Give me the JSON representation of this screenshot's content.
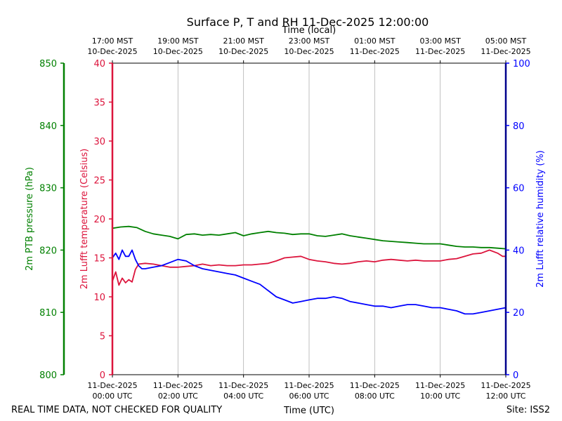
{
  "chart_data": {
    "type": "line",
    "title": "Surface P, T and RH 11-Dec-2025 12:00:00",
    "top_axis_title": "Time (local)",
    "xlabel": "Time (UTC)",
    "footer_left": "REAL TIME DATA, NOT CHECKED FOR QUALITY",
    "footer_right": "Site: ISS2",
    "xlim_hours_utc": [
      0,
      12
    ],
    "x_grid": true,
    "bottom_ticks": [
      {
        "h": 0,
        "l1": "11-Dec-2025",
        "l2": "00:00 UTC"
      },
      {
        "h": 2,
        "l1": "11-Dec-2025",
        "l2": "02:00 UTC"
      },
      {
        "h": 4,
        "l1": "11-Dec-2025",
        "l2": "04:00 UTC"
      },
      {
        "h": 6,
        "l1": "11-Dec-2025",
        "l2": "06:00 UTC"
      },
      {
        "h": 8,
        "l1": "11-Dec-2025",
        "l2": "08:00 UTC"
      },
      {
        "h": 10,
        "l1": "11-Dec-2025",
        "l2": "10:00 UTC"
      },
      {
        "h": 12,
        "l1": "11-Dec-2025",
        "l2": "12:00 UTC"
      }
    ],
    "top_ticks": [
      {
        "h": 0,
        "l1": "17:00 MST",
        "l2": "10-Dec-2025"
      },
      {
        "h": 2,
        "l1": "19:00 MST",
        "l2": "10-Dec-2025"
      },
      {
        "h": 4,
        "l1": "21:00 MST",
        "l2": "10-Dec-2025"
      },
      {
        "h": 6,
        "l1": "23:00 MST",
        "l2": "10-Dec-2025"
      },
      {
        "h": 8,
        "l1": "01:00 MST",
        "l2": "11-Dec-2025"
      },
      {
        "h": 10,
        "l1": "03:00 MST",
        "l2": "11-Dec-2025"
      },
      {
        "h": 12,
        "l1": "05:00 MST",
        "l2": "11-Dec-2025"
      }
    ],
    "axes": {
      "pressure": {
        "label": "2m PTB pressure (hPa)",
        "color": "#008000",
        "ylim": [
          800,
          850
        ],
        "ticks": [
          800,
          810,
          820,
          830,
          840,
          850
        ]
      },
      "temperature": {
        "label": "2m Lufft temperature (Celsius)",
        "color": "#dc143c",
        "ylim": [
          0,
          40
        ],
        "ticks": [
          0,
          5,
          10,
          15,
          20,
          25,
          30,
          35,
          40
        ]
      },
      "humidity": {
        "label": "2m Lufft relative humidity (%)",
        "color": "#0000ff",
        "ylim": [
          0,
          100
        ],
        "ticks": [
          0,
          20,
          40,
          60,
          80,
          100
        ]
      }
    },
    "series": [
      {
        "name": "2m PTB pressure",
        "axis": "pressure",
        "color": "#008000",
        "x": [
          0,
          0.25,
          0.5,
          0.75,
          1.0,
          1.25,
          1.5,
          1.75,
          2.0,
          2.25,
          2.5,
          2.75,
          3.0,
          3.25,
          3.5,
          3.75,
          4.0,
          4.25,
          4.5,
          4.75,
          5.0,
          5.25,
          5.5,
          5.75,
          6.0,
          6.25,
          6.5,
          6.75,
          7.0,
          7.25,
          7.5,
          7.75,
          8.0,
          8.25,
          8.5,
          8.75,
          9.0,
          9.25,
          9.5,
          9.75,
          10.0,
          10.25,
          10.5,
          10.75,
          11.0,
          11.25,
          11.5,
          11.75,
          12.0
        ],
        "values": [
          823.5,
          823.7,
          823.8,
          823.6,
          823.0,
          822.6,
          822.4,
          822.2,
          821.8,
          822.5,
          822.6,
          822.4,
          822.5,
          822.4,
          822.6,
          822.8,
          822.3,
          822.6,
          822.8,
          823.0,
          822.8,
          822.7,
          822.5,
          822.6,
          822.6,
          822.3,
          822.2,
          822.4,
          822.6,
          822.3,
          822.1,
          821.9,
          821.7,
          821.5,
          821.4,
          821.3,
          821.2,
          821.1,
          821.0,
          821.0,
          821.0,
          820.8,
          820.6,
          820.5,
          820.5,
          820.4,
          820.4,
          820.3,
          820.2
        ]
      },
      {
        "name": "2m Lufft temperature",
        "axis": "temperature",
        "color": "#dc143c",
        "x": [
          0,
          0.1,
          0.2,
          0.3,
          0.4,
          0.5,
          0.6,
          0.7,
          0.8,
          1.0,
          1.25,
          1.5,
          1.75,
          2.0,
          2.25,
          2.5,
          2.75,
          3.0,
          3.25,
          3.5,
          3.75,
          4.0,
          4.25,
          4.5,
          4.75,
          5.0,
          5.25,
          5.5,
          5.75,
          6.0,
          6.25,
          6.5,
          6.75,
          7.0,
          7.25,
          7.5,
          7.75,
          8.0,
          8.25,
          8.5,
          8.75,
          9.0,
          9.25,
          9.5,
          9.75,
          10.0,
          10.25,
          10.5,
          10.75,
          11.0,
          11.25,
          11.5,
          11.75,
          11.9,
          12.0
        ],
        "values": [
          12.0,
          13.2,
          11.5,
          12.4,
          11.8,
          12.2,
          11.9,
          13.5,
          14.2,
          14.3,
          14.2,
          14.0,
          13.8,
          13.8,
          13.9,
          14.0,
          14.2,
          14.0,
          14.1,
          14.0,
          14.0,
          14.1,
          14.1,
          14.2,
          14.3,
          14.6,
          15.0,
          15.1,
          15.2,
          14.8,
          14.6,
          14.5,
          14.3,
          14.2,
          14.3,
          14.5,
          14.6,
          14.5,
          14.7,
          14.8,
          14.7,
          14.6,
          14.7,
          14.6,
          14.6,
          14.6,
          14.8,
          14.9,
          15.2,
          15.5,
          15.6,
          16.0,
          15.6,
          15.2,
          15.2
        ]
      },
      {
        "name": "2m Lufft relative humidity",
        "axis": "humidity",
        "color": "#0000ff",
        "x": [
          0,
          0.1,
          0.2,
          0.3,
          0.4,
          0.5,
          0.6,
          0.7,
          0.8,
          0.9,
          1.0,
          1.25,
          1.5,
          1.75,
          2.0,
          2.25,
          2.5,
          2.75,
          3.0,
          3.25,
          3.5,
          3.75,
          4.0,
          4.25,
          4.5,
          4.75,
          5.0,
          5.25,
          5.5,
          5.75,
          6.0,
          6.25,
          6.5,
          6.75,
          7.0,
          7.25,
          7.5,
          7.75,
          8.0,
          8.25,
          8.5,
          8.75,
          9.0,
          9.25,
          9.5,
          9.75,
          10.0,
          10.25,
          10.5,
          10.75,
          11.0,
          11.25,
          11.5,
          11.75,
          12.0
        ],
        "values": [
          37.5,
          39.0,
          37.0,
          40.0,
          38.0,
          38.0,
          40.0,
          37.0,
          35.0,
          34.0,
          34.0,
          34.5,
          35.0,
          36.0,
          37.0,
          36.5,
          35.0,
          34.0,
          33.5,
          33.0,
          32.5,
          32.0,
          31.0,
          30.0,
          29.0,
          27.0,
          25.0,
          24.0,
          23.0,
          23.5,
          24.0,
          24.5,
          24.5,
          25.0,
          24.5,
          23.5,
          23.0,
          22.5,
          22.0,
          22.0,
          21.5,
          22.0,
          22.5,
          22.5,
          22.0,
          21.5,
          21.5,
          21.0,
          20.5,
          19.5,
          19.5,
          20.0,
          20.5,
          21.0,
          21.5
        ]
      }
    ]
  }
}
